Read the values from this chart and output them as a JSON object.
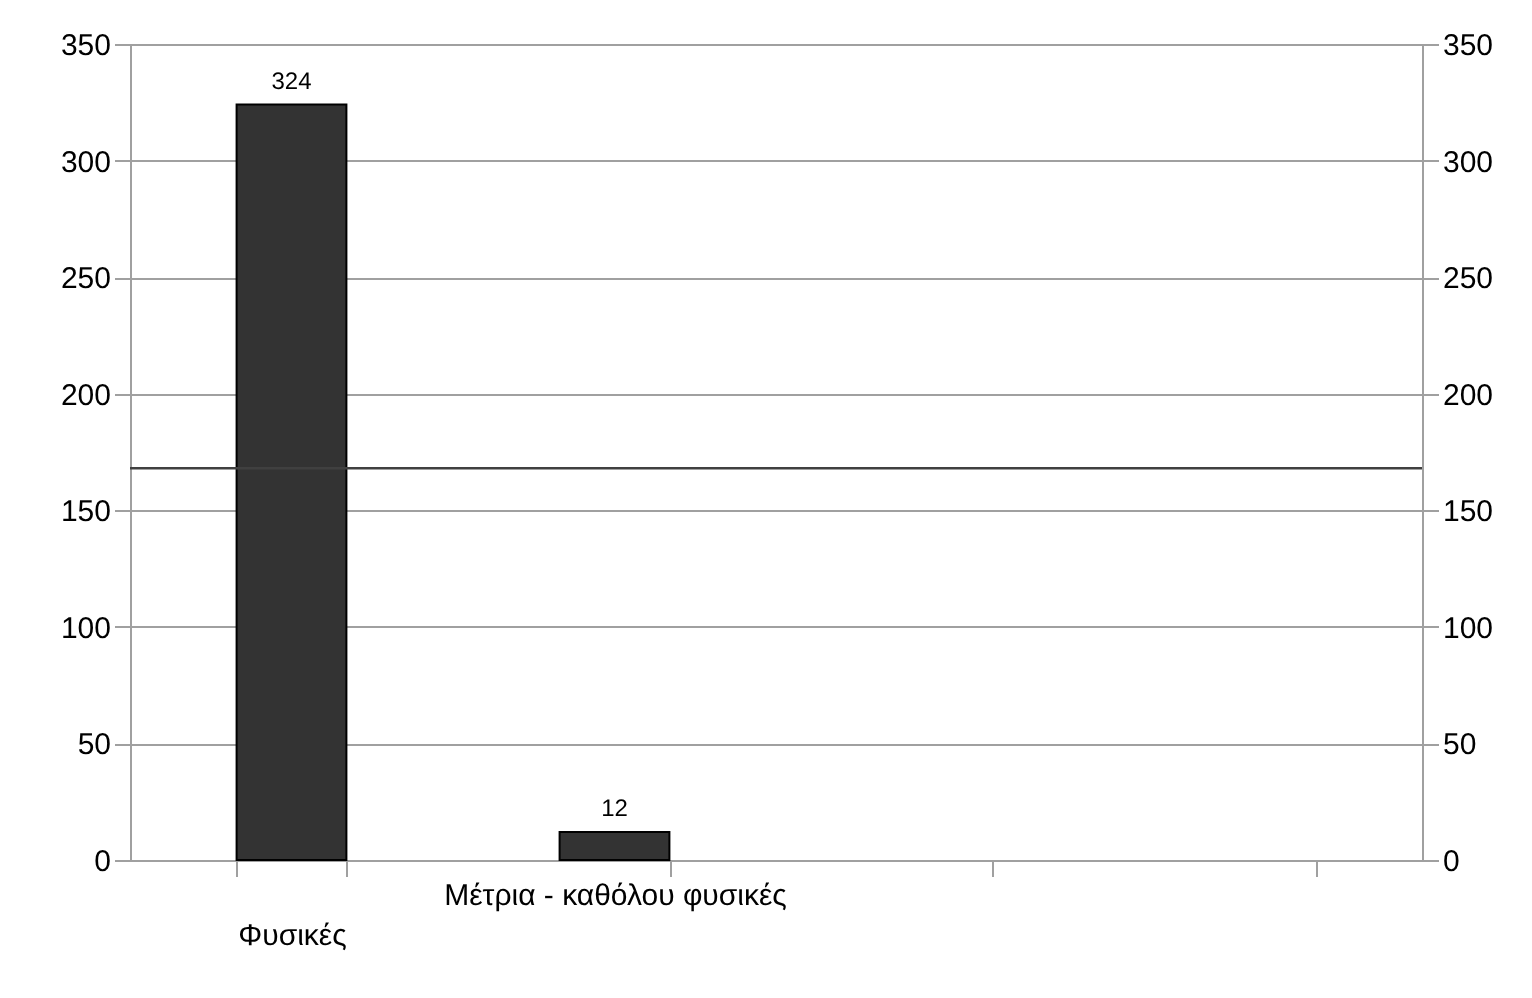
{
  "chart_data": {
    "type": "bar",
    "categories": [
      "Φυσικές",
      "Μέτρια - καθόλου φυσικές",
      null,
      null
    ],
    "series": [
      {
        "color": "#333333",
        "values": [
          324,
          12,
          null,
          null
        ]
      }
    ],
    "ylim": [
      0,
      350
    ],
    "yticks": [
      0,
      50,
      100,
      150,
      200,
      250,
      300,
      350
    ],
    "y2lim": [
      0,
      350
    ],
    "y2ticks": [
      0,
      50,
      100,
      150,
      200,
      250,
      300,
      350
    ],
    "ref_lines": [
      {
        "axis": "y",
        "value": 168,
        "color": "#404040"
      }
    ],
    "data_labels": true,
    "grid": "y"
  }
}
